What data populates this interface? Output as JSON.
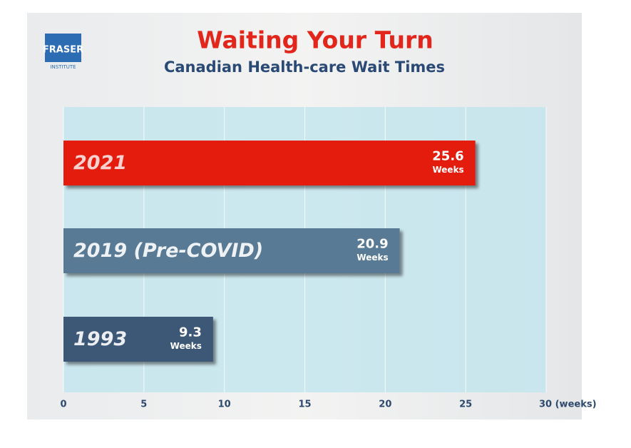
{
  "logo": {
    "name": "FRASER",
    "subtitle": "INSTITUTE"
  },
  "chart_data": {
    "type": "barh",
    "title": "Waiting Your Turn",
    "subtitle": "Canadian Health-care Wait Times",
    "categories": [
      "2021",
      "2019 (Pre-COVID)",
      "1993"
    ],
    "values": [
      25.6,
      20.9,
      9.3
    ],
    "unit": "Weeks",
    "colors": [
      "#e41e08",
      "#587a95",
      "#3c5877"
    ],
    "xlim": [
      0,
      30
    ],
    "xticks": [
      0,
      5,
      10,
      15,
      20,
      25,
      {
        "value": 30,
        "label": "30 (weeks)"
      }
    ],
    "grid": true
  }
}
